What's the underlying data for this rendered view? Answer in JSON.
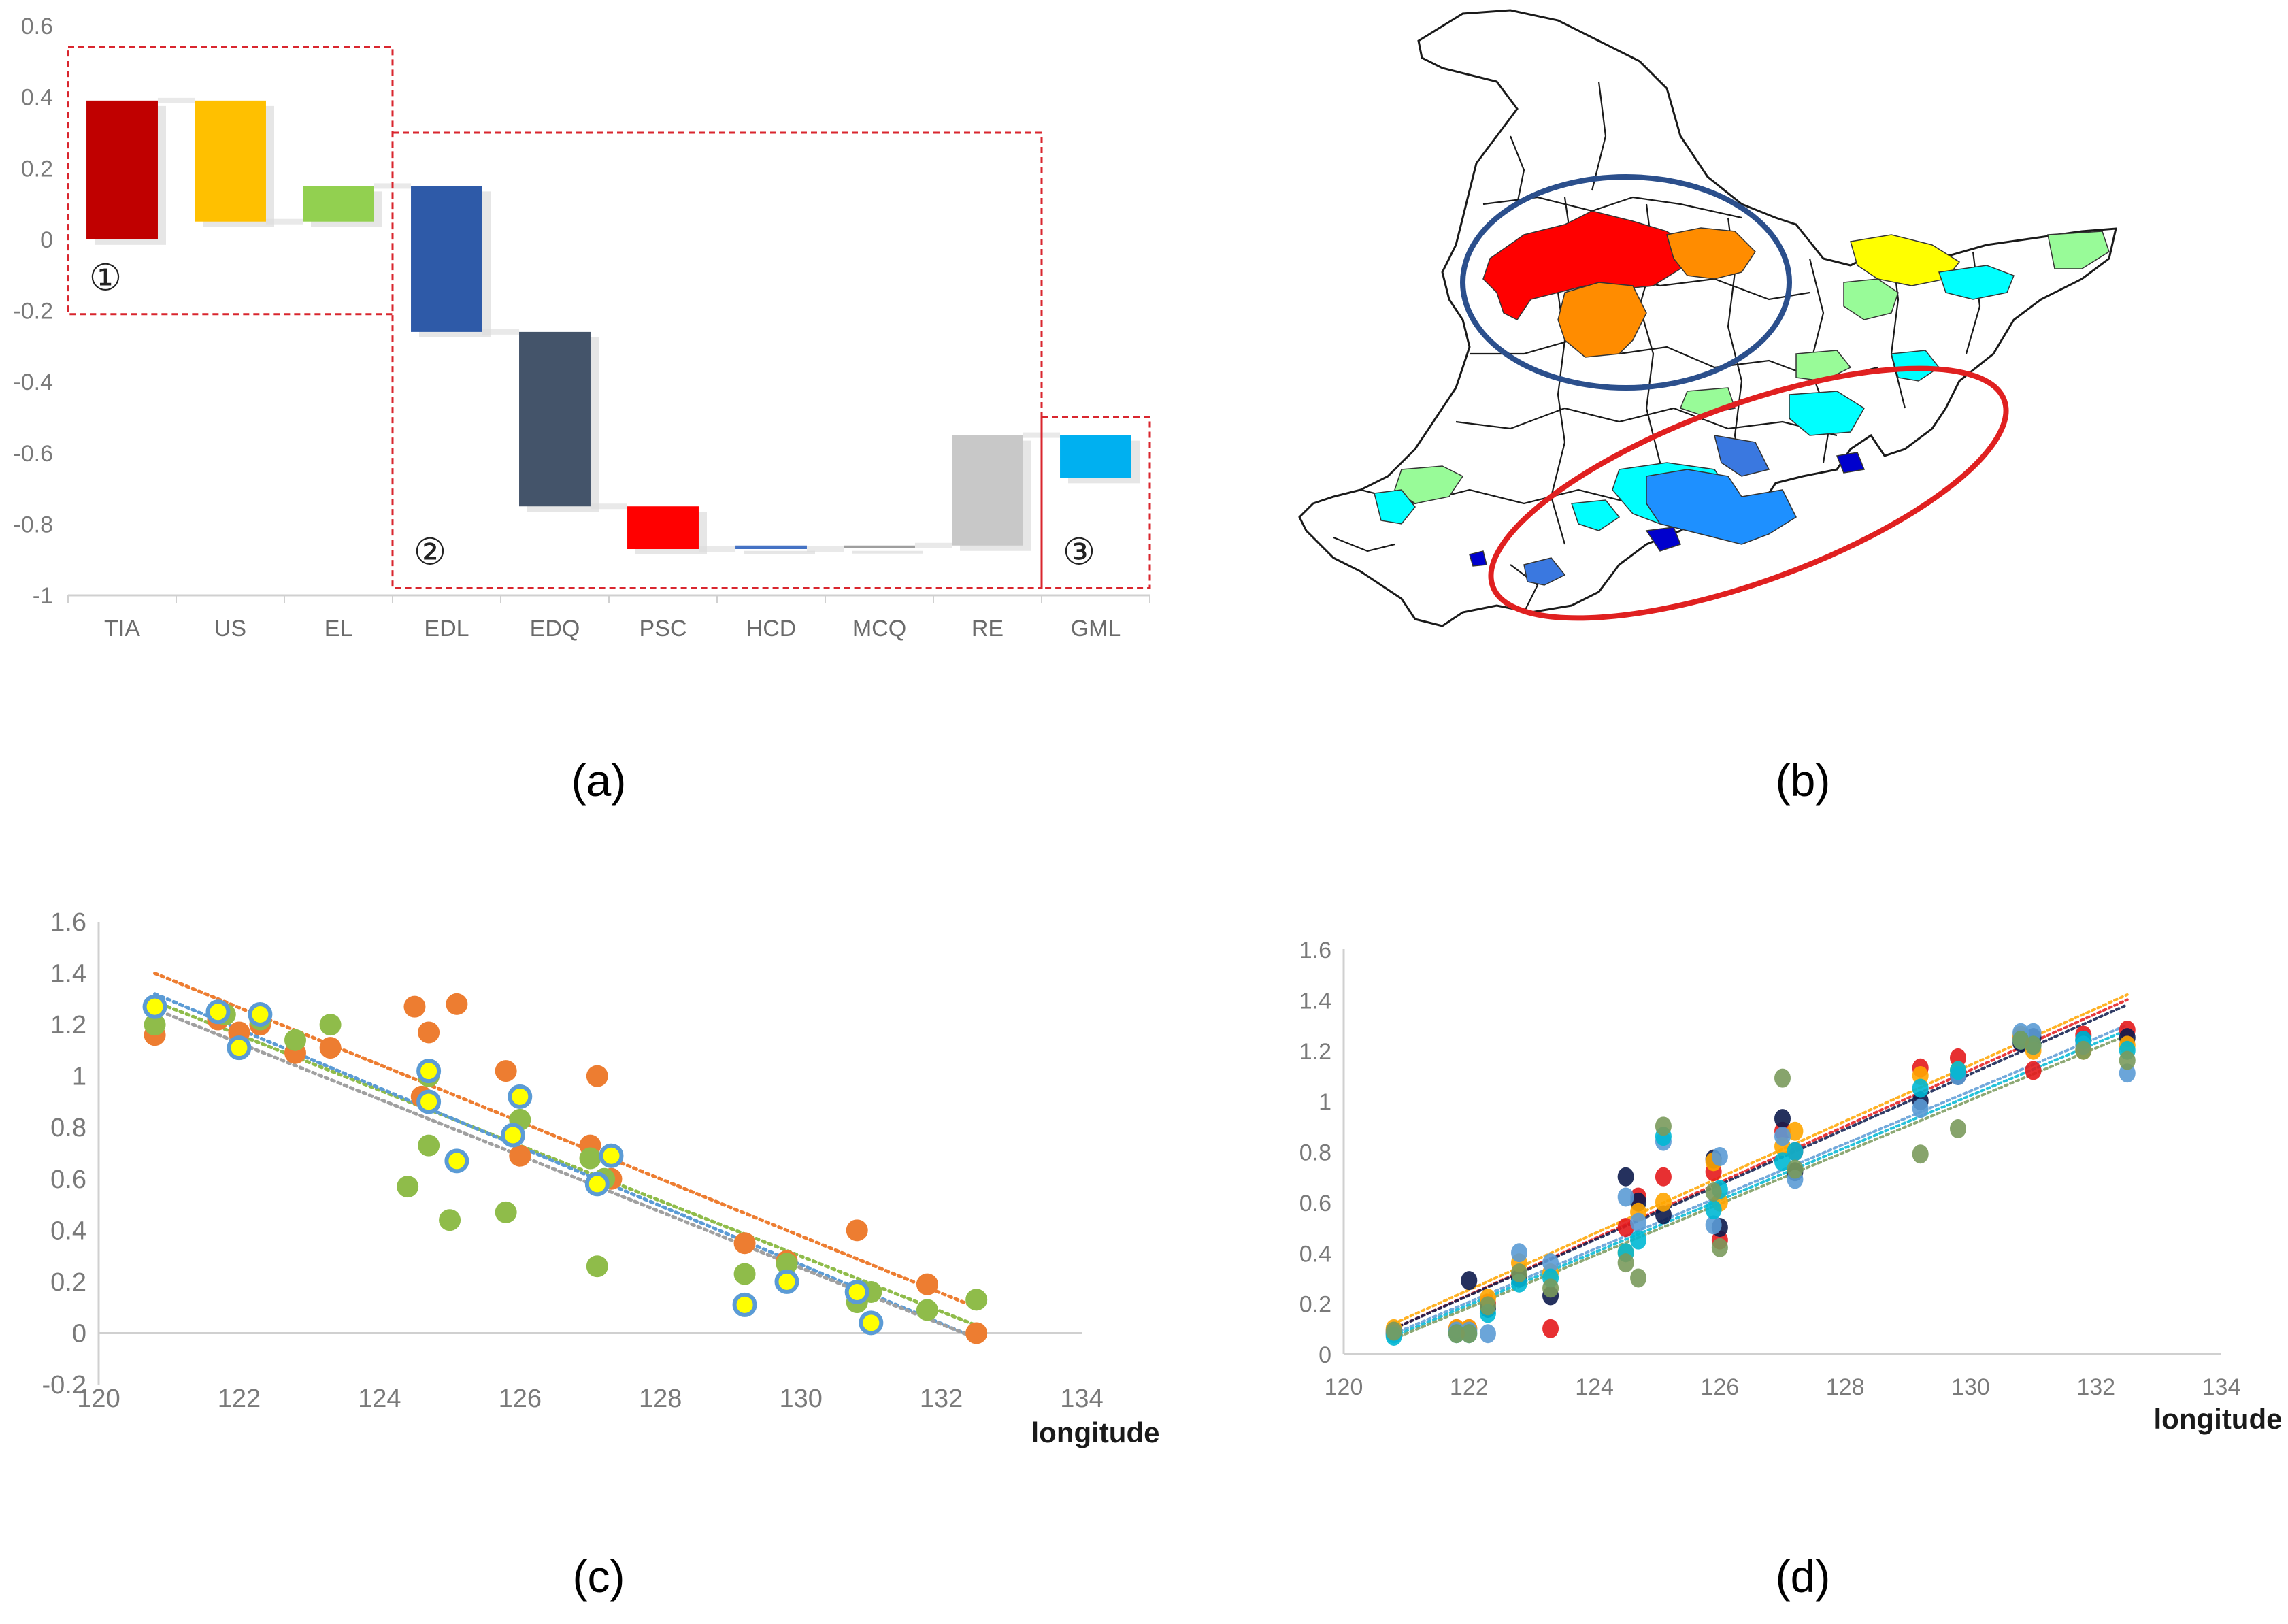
{
  "panel_labels": [
    "(a)",
    "(b)",
    "(c)",
    "(d)"
  ],
  "colors": {
    "group_box": "#d9262e",
    "map_blue_ellipse": "#2b4f8c",
    "map_red_ellipse": "#e02020",
    "scatter_orange": "#ed7d31",
    "scatter_green": "#8fbc4a",
    "scatter_yellow": "#ffff00",
    "scatter_blue_ring": "#5b9bd5"
  },
  "chart_data": [
    {
      "id": "a",
      "type": "bar",
      "subtype": "waterfall",
      "title": "",
      "categories": [
        "TIA",
        "US",
        "EL",
        "EDL",
        "EDQ",
        "PSC",
        "HCD",
        "MCQ",
        "RE",
        "GML"
      ],
      "bars": [
        {
          "category": "TIA",
          "start": 0.0,
          "end": 0.39,
          "color": "#c00000"
        },
        {
          "category": "US",
          "start": 0.39,
          "end": 0.05,
          "color": "#ffc000"
        },
        {
          "category": "EL",
          "start": 0.05,
          "end": 0.15,
          "color": "#92d050"
        },
        {
          "category": "EDL",
          "start": 0.15,
          "end": -0.26,
          "color": "#2e5aa8"
        },
        {
          "category": "EDQ",
          "start": -0.26,
          "end": -0.75,
          "color": "#44546a"
        },
        {
          "category": "PSC",
          "start": -0.75,
          "end": -0.87,
          "color": "#ff0000"
        },
        {
          "category": "HCD",
          "start": -0.86,
          "end": -0.87,
          "color": "#4472c4"
        },
        {
          "category": "MCQ",
          "start": -0.86,
          "end": -0.86,
          "color": "#9e9e9e"
        },
        {
          "category": "RE",
          "start": -0.86,
          "end": -0.55,
          "color": "#c8c8c8"
        },
        {
          "category": "GML",
          "start": -0.55,
          "end": -0.67,
          "color": "#00b0f0"
        }
      ],
      "ylim": [
        -1.0,
        0.6
      ],
      "yticks": [
        "0.6",
        "0.4",
        "0.2",
        "0",
        "-0.2",
        "-0.4",
        "-0.6",
        "-0.8",
        "-1"
      ],
      "ytick_values": [
        0.6,
        0.4,
        0.2,
        0,
        -0.2,
        -0.4,
        -0.6,
        -0.8,
        -1.0
      ],
      "groups": [
        {
          "label": "①",
          "categories": [
            "TIA",
            "US",
            "EL"
          ],
          "ylim": [
            -0.21,
            0.54
          ]
        },
        {
          "label": "②",
          "categories": [
            "EDL",
            "EDQ",
            "PSC",
            "HCD",
            "MCQ",
            "RE"
          ],
          "ylim": [
            -0.98,
            0.3
          ]
        },
        {
          "label": "③",
          "categories": [
            "GML"
          ],
          "ylim": [
            -0.98,
            -0.5
          ]
        }
      ]
    },
    {
      "id": "c",
      "type": "scatter",
      "title": "",
      "xlabel": "longitude",
      "ylabel": "",
      "xlim": [
        120,
        134
      ],
      "ylim": [
        -0.2,
        1.6
      ],
      "xticks": [
        "120",
        "122",
        "124",
        "126",
        "128",
        "130",
        "132",
        "134"
      ],
      "xtick_values": [
        120,
        122,
        124,
        126,
        128,
        130,
        132,
        134
      ],
      "yticks": [
        "1.6",
        "1.4",
        "1.2",
        "1",
        "0.8",
        "0.6",
        "0.4",
        "0.2",
        "0",
        "-0.2"
      ],
      "ytick_values": [
        1.6,
        1.4,
        1.2,
        1.0,
        0.8,
        0.6,
        0.4,
        0.2,
        0,
        -0.2
      ],
      "series": [
        {
          "name": "orange",
          "color": "#ed7d31",
          "trend": [
            [
              120.8,
              1.4
            ],
            [
              132.5,
              0.1
            ]
          ],
          "points": [
            [
              120.8,
              1.16
            ],
            [
              121.7,
              1.22
            ],
            [
              122,
              1.17
            ],
            [
              122.3,
              1.2
            ],
            [
              122.8,
              1.09
            ],
            [
              123.3,
              1.11
            ],
            [
              124.5,
              1.27
            ],
            [
              124.7,
              1.17
            ],
            [
              125.1,
              1.28
            ],
            [
              125.8,
              1.02
            ],
            [
              126,
              0.69
            ],
            [
              127.1,
              1.0
            ],
            [
              127,
              0.73
            ],
            [
              127.3,
              0.6
            ],
            [
              129.2,
              0.35
            ],
            [
              129.8,
              0.28
            ],
            [
              130.8,
              0.4
            ],
            [
              131.8,
              0.19
            ],
            [
              132.5,
              0.0
            ],
            [
              124.6,
              0.92
            ]
          ]
        },
        {
          "name": "green",
          "color": "#8fbc4a",
          "trend": [
            [
              120.8,
              1.29
            ],
            [
              132.5,
              0.03
            ]
          ],
          "points": [
            [
              120.8,
              1.2
            ],
            [
              121.8,
              1.24
            ],
            [
              122.3,
              1.22
            ],
            [
              122.8,
              1.14
            ],
            [
              123.3,
              1.2
            ],
            [
              124.4,
              0.57
            ],
            [
              124.7,
              0.73
            ],
            [
              125,
              0.44
            ],
            [
              125.8,
              0.47
            ],
            [
              126,
              0.83
            ],
            [
              127.1,
              0.26
            ],
            [
              127.2,
              0.6
            ],
            [
              129.2,
              0.23
            ],
            [
              129.8,
              0.27
            ],
            [
              130.8,
              0.12
            ],
            [
              131,
              0.16
            ],
            [
              131.8,
              0.09
            ],
            [
              132.5,
              0.13
            ],
            [
              124.7,
              1.0
            ],
            [
              127,
              0.68
            ]
          ]
        },
        {
          "name": "yellow-blue",
          "color": "#ffff00",
          "ring": "#5b9bd5",
          "trend": [
            [
              120.8,
              1.32
            ],
            [
              132.5,
              -0.02
            ]
          ],
          "points": [
            [
              120.8,
              1.27
            ],
            [
              121.7,
              1.25
            ],
            [
              122,
              1.11
            ],
            [
              122.3,
              1.24
            ],
            [
              124.7,
              0.9
            ],
            [
              124.7,
              1.02
            ],
            [
              125.1,
              0.67
            ],
            [
              126,
              0.92
            ],
            [
              125.9,
              0.77
            ],
            [
              127.1,
              0.58
            ],
            [
              127.3,
              0.69
            ],
            [
              129.2,
              0.11
            ],
            [
              129.8,
              0.2
            ],
            [
              130.8,
              0.16
            ],
            [
              131,
              0.04
            ]
          ]
        },
        {
          "name": "gray-trend",
          "color": "#a0a0a0",
          "trend": [
            [
              120.8,
              1.26
            ],
            [
              132.5,
              -0.02
            ]
          ],
          "points": []
        }
      ]
    },
    {
      "id": "d",
      "type": "scatter",
      "title": "",
      "xlabel": "longitude",
      "ylabel": "",
      "xlim": [
        120,
        134
      ],
      "ylim": [
        0,
        1.6
      ],
      "xticks": [
        "120",
        "122",
        "124",
        "126",
        "128",
        "130",
        "132",
        "134"
      ],
      "xtick_values": [
        120,
        122,
        124,
        126,
        128,
        130,
        132,
        134
      ],
      "yticks": [
        "1.6",
        "1.4",
        "1.2",
        "1",
        "0.8",
        "0.6",
        "0.4",
        "0.2",
        "0"
      ],
      "ytick_values": [
        1.6,
        1.4,
        1.2,
        1.0,
        0.8,
        0.6,
        0.4,
        0.2,
        0
      ],
      "x_positions": [
        120.8,
        121.8,
        122.0,
        122.3,
        122.8,
        123.3,
        124.5,
        124.7,
        125.1,
        125.9,
        126.0,
        127.0,
        127.2,
        129.2,
        129.8,
        130.8,
        131.0,
        131.8,
        132.5
      ],
      "series": [
        {
          "name": "red",
          "color": "#e41a1c",
          "trend": [
            [
              120.8,
              0.1
            ],
            [
              132.5,
              1.4
            ]
          ],
          "values": [
            0.09,
            0.1,
            0.1,
            0.2,
            0.3,
            0.1,
            0.5,
            0.62,
            0.7,
            0.72,
            0.45,
            0.88,
            0.8,
            1.13,
            1.17,
            1.25,
            1.12,
            1.26,
            1.28
          ]
        },
        {
          "name": "navy",
          "color": "#0d1b4c",
          "trend": [
            [
              120.8,
              0.1
            ],
            [
              132.5,
              1.38
            ]
          ],
          "values": [
            0.08,
            0.09,
            0.29,
            0.18,
            0.3,
            0.23,
            0.7,
            0.6,
            0.55,
            0.77,
            0.5,
            0.93,
            0.72,
            1.0,
            1.1,
            1.23,
            1.25,
            1.24,
            1.25
          ]
        },
        {
          "name": "orange",
          "color": "#ffa500",
          "trend": [
            [
              120.8,
              0.12
            ],
            [
              132.5,
              1.42
            ]
          ],
          "values": [
            0.1,
            0.1,
            0.1,
            0.22,
            0.36,
            0.32,
            0.4,
            0.56,
            0.6,
            0.76,
            0.6,
            0.82,
            0.88,
            1.1,
            1.12,
            1.26,
            1.2,
            1.2,
            1.22
          ]
        },
        {
          "name": "lightblue",
          "color": "#5b9bd5",
          "trend": [
            [
              120.8,
              0.08
            ],
            [
              132.5,
              1.3
            ]
          ],
          "values": [
            0.08,
            0.09,
            0.09,
            0.08,
            0.4,
            0.36,
            0.62,
            0.52,
            0.84,
            0.51,
            0.78,
            0.86,
            0.69,
            0.97,
            1.1,
            1.27,
            1.27,
            1.22,
            1.11
          ]
        },
        {
          "name": "cyan",
          "color": "#00b8d4",
          "trend": [
            [
              120.8,
              0.07
            ],
            [
              132.5,
              1.28
            ]
          ],
          "values": [
            0.07,
            0.08,
            0.08,
            0.16,
            0.28,
            0.3,
            0.4,
            0.45,
            0.86,
            0.57,
            0.65,
            0.76,
            0.8,
            1.05,
            1.12,
            1.24,
            1.22,
            1.24,
            1.2
          ]
        },
        {
          "name": "green",
          "color": "#7a9a5c",
          "trend": [
            [
              120.8,
              0.06
            ],
            [
              132.5,
              1.26
            ]
          ],
          "values": [
            0.09,
            0.08,
            0.08,
            0.19,
            0.32,
            0.26,
            0.36,
            0.3,
            0.9,
            0.64,
            0.42,
            1.09,
            0.73,
            0.79,
            0.89,
            1.24,
            1.22,
            1.2,
            1.16
          ]
        }
      ]
    }
  ],
  "map_b": {
    "description_free": true,
    "highlight_colors": [
      "#ff0000",
      "#ff8c00",
      "#ffff00",
      "#00ffff",
      "#98fb98",
      "#1e90ff",
      "#0000cd"
    ]
  }
}
